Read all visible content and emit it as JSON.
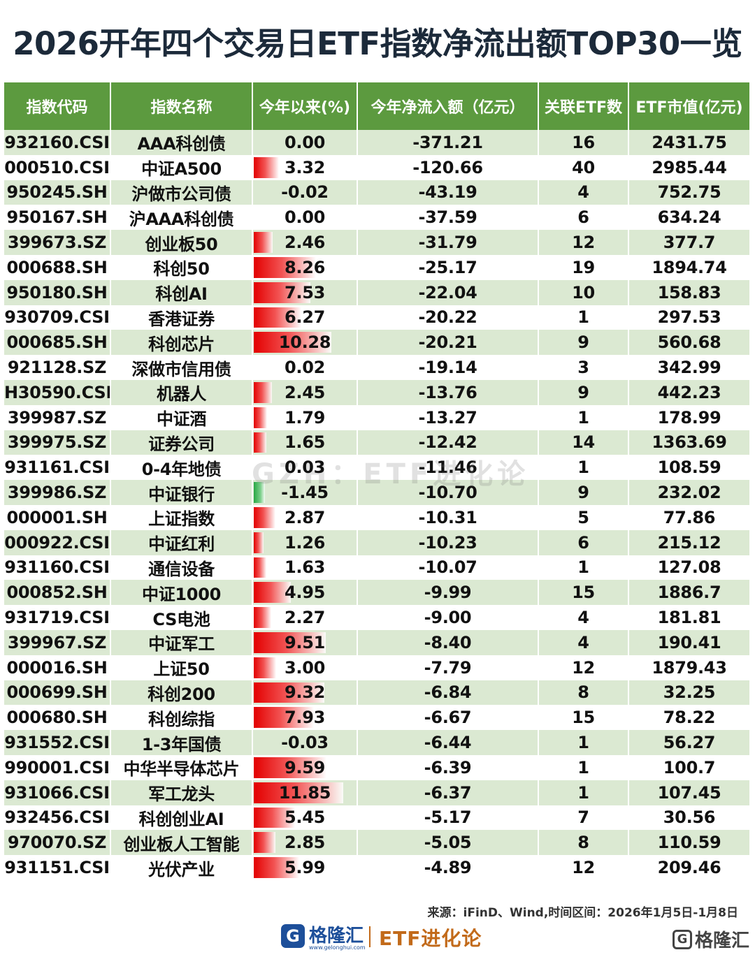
{
  "title": "2026开年四个交易日ETF指数净流出额TOP30一览",
  "headers": [
    "指数代码",
    "指数名称",
    "今年以来(%)",
    "今年净流入额（亿元）",
    "关联ETF数",
    "ETF市值(亿元)"
  ],
  "rows": [
    {
      "code": "932160.CSI",
      "name": "AAA科创债",
      "ytd": "0.00",
      "flow": "-371.21",
      "etf_count": "16",
      "mcap": "2431.75"
    },
    {
      "code": "000510.CSI",
      "name": "中证A500",
      "ytd": "3.32",
      "flow": "-120.66",
      "etf_count": "40",
      "mcap": "2985.44"
    },
    {
      "code": "950245.SH",
      "name": "沪做市公司债",
      "ytd": "-0.02",
      "flow": "-43.19",
      "etf_count": "4",
      "mcap": "752.75"
    },
    {
      "code": "950167.SH",
      "name": "沪AAA科创债",
      "ytd": "0.00",
      "flow": "-37.59",
      "etf_count": "6",
      "mcap": "634.24"
    },
    {
      "code": "399673.SZ",
      "name": "创业板50",
      "ytd": "2.46",
      "flow": "-31.79",
      "etf_count": "12",
      "mcap": "377.7"
    },
    {
      "code": "000688.SH",
      "name": "科创50",
      "ytd": "8.26",
      "flow": "-25.17",
      "etf_count": "19",
      "mcap": "1894.74"
    },
    {
      "code": "950180.SH",
      "name": "科创AI",
      "ytd": "7.53",
      "flow": "-22.04",
      "etf_count": "10",
      "mcap": "158.83"
    },
    {
      "code": "930709.CSI",
      "name": "香港证券",
      "ytd": "6.27",
      "flow": "-20.22",
      "etf_count": "1",
      "mcap": "297.53"
    },
    {
      "code": "000685.SH",
      "name": "科创芯片",
      "ytd": "10.28",
      "flow": "-20.21",
      "etf_count": "9",
      "mcap": "560.68"
    },
    {
      "code": "921128.SZ",
      "name": "深做市信用债",
      "ytd": "0.02",
      "flow": "-19.14",
      "etf_count": "3",
      "mcap": "342.99"
    },
    {
      "code": "H30590.CSI",
      "name": "机器人",
      "ytd": "2.45",
      "flow": "-13.76",
      "etf_count": "9",
      "mcap": "442.23"
    },
    {
      "code": "399987.SZ",
      "name": "中证酒",
      "ytd": "1.79",
      "flow": "-13.27",
      "etf_count": "1",
      "mcap": "178.99"
    },
    {
      "code": "399975.SZ",
      "name": "证券公司",
      "ytd": "1.65",
      "flow": "-12.42",
      "etf_count": "14",
      "mcap": "1363.69"
    },
    {
      "code": "931161.CSI",
      "name": "0-4年地债",
      "ytd": "0.03",
      "flow": "-11.46",
      "etf_count": "1",
      "mcap": "108.59"
    },
    {
      "code": "399986.SZ",
      "name": "中证银行",
      "ytd": "-1.45",
      "flow": "-10.70",
      "etf_count": "9",
      "mcap": "232.02"
    },
    {
      "code": "000001.SH",
      "name": "上证指数",
      "ytd": "2.87",
      "flow": "-10.31",
      "etf_count": "5",
      "mcap": "77.86"
    },
    {
      "code": "000922.CSI",
      "name": "中证红利",
      "ytd": "1.26",
      "flow": "-10.23",
      "etf_count": "6",
      "mcap": "215.12"
    },
    {
      "code": "931160.CSI",
      "name": "通信设备",
      "ytd": "1.63",
      "flow": "-10.07",
      "etf_count": "1",
      "mcap": "127.08"
    },
    {
      "code": "000852.SH",
      "name": "中证1000",
      "ytd": "4.95",
      "flow": "-9.99",
      "etf_count": "15",
      "mcap": "1886.7"
    },
    {
      "code": "931719.CSI",
      "name": "CS电池",
      "ytd": "2.27",
      "flow": "-9.00",
      "etf_count": "4",
      "mcap": "181.81"
    },
    {
      "code": "399967.SZ",
      "name": "中证军工",
      "ytd": "9.51",
      "flow": "-8.40",
      "etf_count": "4",
      "mcap": "190.41"
    },
    {
      "code": "000016.SH",
      "name": "上证50",
      "ytd": "3.00",
      "flow": "-7.79",
      "etf_count": "12",
      "mcap": "1879.43"
    },
    {
      "code": "000699.SH",
      "name": "科创200",
      "ytd": "9.32",
      "flow": "-6.84",
      "etf_count": "8",
      "mcap": "32.25"
    },
    {
      "code": "000680.SH",
      "name": "科创综指",
      "ytd": "7.93",
      "flow": "-6.67",
      "etf_count": "15",
      "mcap": "78.22"
    },
    {
      "code": "931552.CSI",
      "name": "1-3年国债",
      "ytd": "-0.03",
      "flow": "-6.44",
      "etf_count": "1",
      "mcap": "56.27"
    },
    {
      "code": "990001.CSI",
      "name": "中华半导体芯片",
      "ytd": "9.59",
      "flow": "-6.39",
      "etf_count": "1",
      "mcap": "100.7"
    },
    {
      "code": "931066.CSI",
      "name": "军工龙头",
      "ytd": "11.85",
      "flow": "-6.37",
      "etf_count": "1",
      "mcap": "107.45"
    },
    {
      "code": "932456.CSI",
      "name": "科创创业AI",
      "ytd": "5.45",
      "flow": "-5.17",
      "etf_count": "7",
      "mcap": "30.56"
    },
    {
      "code": "970070.SZ",
      "name": "创业板人工智能",
      "ytd": "2.85",
      "flow": "-5.05",
      "etf_count": "8",
      "mcap": "110.59"
    },
    {
      "code": "931151.CSI",
      "name": "光伏产业",
      "ytd": "5.99",
      "flow": "-4.89",
      "etf_count": "12",
      "mcap": "209.46"
    }
  ],
  "watermark": "GZH：ETF进化论",
  "source": "来源：iFinD、Wind,时间区间：2026年1月5日-1月8日",
  "footer": {
    "brand_name": "格隆汇",
    "brand_url": "www.gelonghui.com",
    "brand_right": "ETF进化论",
    "corner_mark": "格隆汇"
  },
  "colors": {
    "header_bg": "#5c9a3f",
    "stripe_bg": "#dbe9d2",
    "bar_positive": "#e30000",
    "bar_negative": "#28a745",
    "brand_blue": "#1d4f9a",
    "brand_orange": "#c26a1a"
  },
  "icons": {
    "brand_logo": "g-logo-icon",
    "corner_logo": "g-logo-icon"
  }
}
